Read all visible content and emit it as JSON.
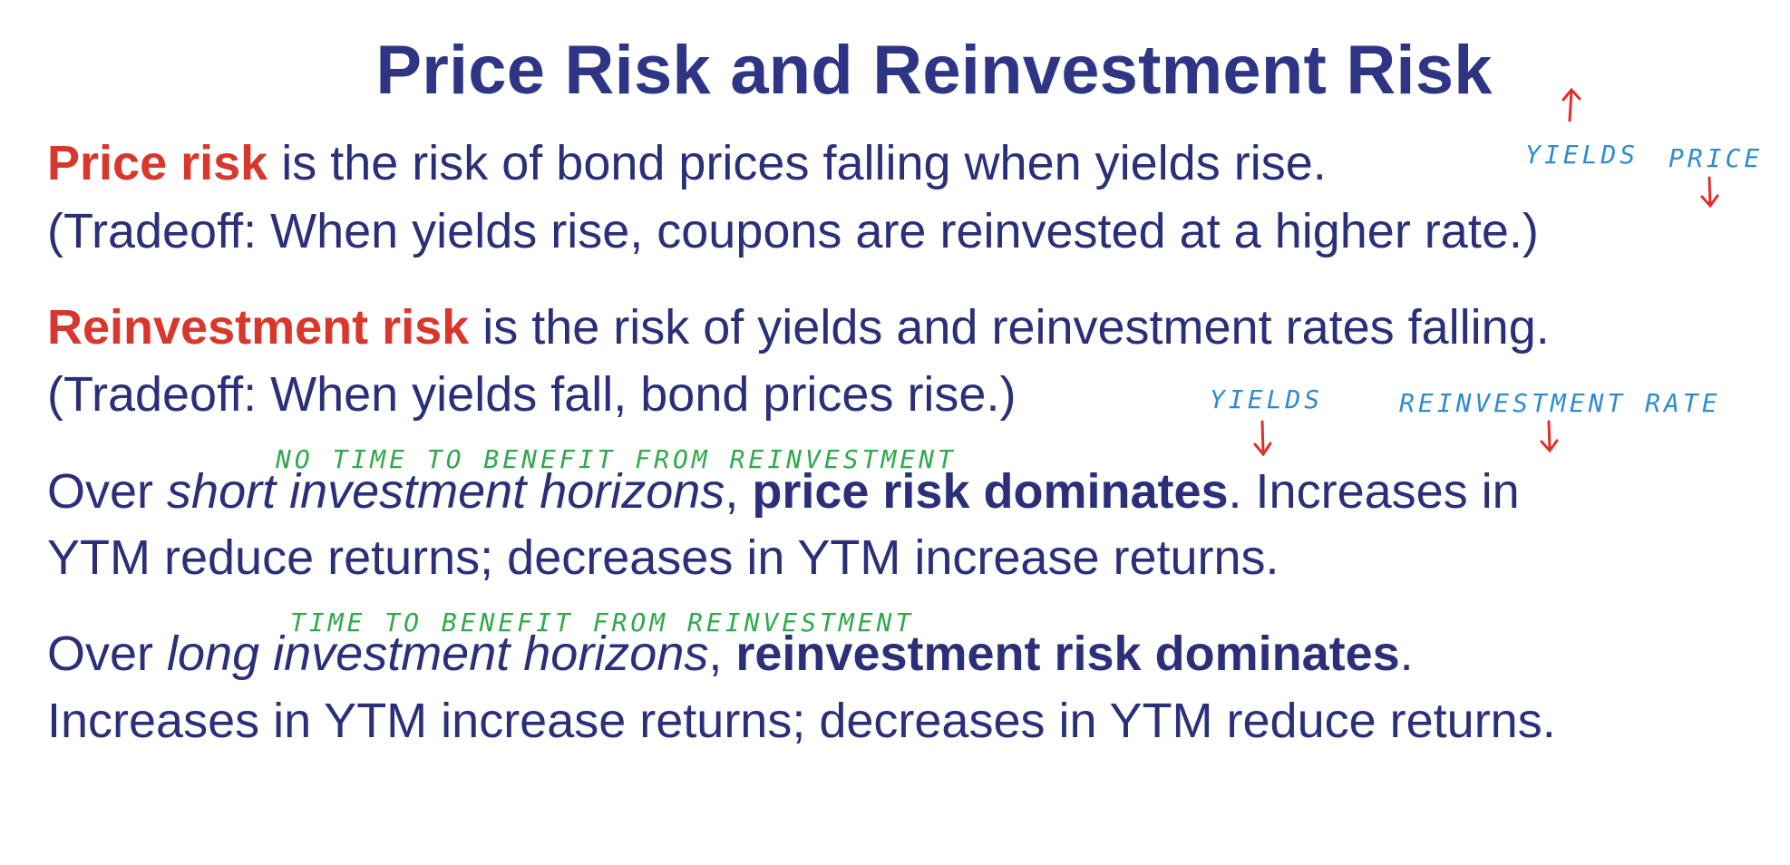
{
  "title": "Price Risk and Reinvestment Risk",
  "para1": {
    "term": "Price risk",
    "rest": " is the risk of bond prices falling when yields rise.",
    "tradeoff": "(Tradeoff: When yields rise, coupons are reinvested at a higher rate.)"
  },
  "para2": {
    "term": "Reinvestment risk",
    "rest": " is the risk of yields and reinvestment rates falling.",
    "tradeoff": "(Tradeoff: When yields fall, bond prices rise.)"
  },
  "para3": {
    "over": "Over ",
    "horizon": "short investment horizons",
    "comma": ", ",
    "dominates": "price risk dominates",
    "after": ". Increases in",
    "line2": "YTM reduce returns; decreases in YTM increase returns."
  },
  "para4": {
    "over": "Over ",
    "horizon": "long investment horizons",
    "comma": ", ",
    "dominates": "reinvestment risk dominates",
    "after": ".",
    "line2": "Increases in YTM increase returns; decreases in YTM reduce returns."
  },
  "annotations": {
    "yields_1": "YIELDS",
    "price_1": "PRICE",
    "yields_2": "YIELDS",
    "reinvestment_rate": "REINVESTMENT RATE",
    "no_time_note": "NO TIME TO BENEFIT FROM REINVESTMENT",
    "time_note": "TIME TO BENEFIT FROM REINVESTMENT"
  },
  "colors": {
    "text": "#2b2f7a",
    "title": "#2e3585",
    "term": "#d9372b",
    "ink_blue": "#2f8ccb",
    "ink_green": "#2eaa4a",
    "ink_red": "#e0302a"
  }
}
